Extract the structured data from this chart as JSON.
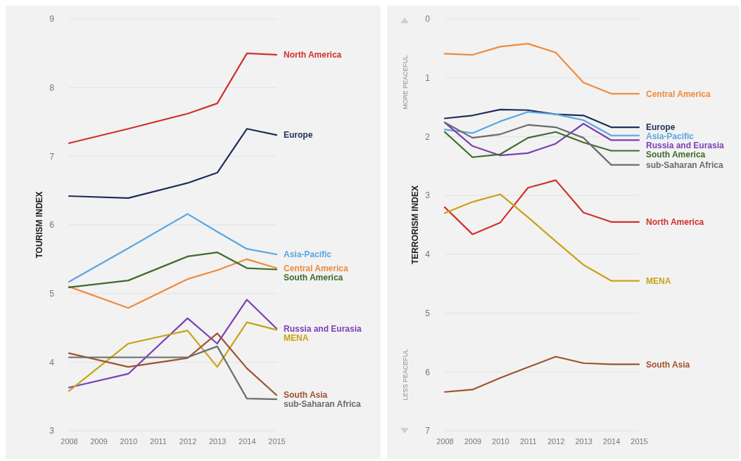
{
  "chart_data": [
    {
      "type": "line",
      "ylabel": "TOURISM INDEX",
      "x": [
        2008,
        2010,
        2012,
        2013,
        2014,
        2015
      ],
      "xlim": [
        2008,
        2015
      ],
      "xticks": [
        2008,
        2009,
        2010,
        2011,
        2012,
        2013,
        2014,
        2015
      ],
      "ylim": [
        3,
        9
      ],
      "yticks": [
        3,
        4,
        5,
        6,
        7,
        8,
        9
      ],
      "grid": "y",
      "legend": false,
      "series": [
        {
          "name": "North America",
          "color": "#d0312d",
          "values": [
            7.19,
            7.4,
            7.62,
            7.77,
            8.5,
            8.48
          ]
        },
        {
          "name": "Europe",
          "color": "#1f2d5a",
          "values": [
            6.42,
            6.39,
            6.61,
            6.76,
            7.4,
            7.31
          ]
        },
        {
          "name": "Asia-Pacific",
          "color": "#5aa7e0",
          "values": [
            5.17,
            5.66,
            6.16,
            5.9,
            5.65,
            5.57
          ]
        },
        {
          "name": "Central America",
          "color": "#f08a3c",
          "values": [
            5.1,
            4.79,
            5.21,
            5.34,
            5.5,
            5.37
          ]
        },
        {
          "name": "South America",
          "color": "#3e6b2a",
          "values": [
            5.09,
            5.19,
            5.54,
            5.6,
            5.37,
            5.35
          ]
        },
        {
          "name": "Russia and Eurasia",
          "color": "#7a3fb5",
          "values": [
            3.63,
            3.83,
            4.64,
            4.27,
            4.91,
            4.49
          ]
        },
        {
          "name": "MENA",
          "color": "#c9a216",
          "values": [
            3.58,
            4.27,
            4.46,
            3.93,
            4.58,
            4.47
          ]
        },
        {
          "name": "South Asia",
          "color": "#a0522d",
          "values": [
            4.13,
            3.93,
            4.06,
            4.42,
            3.91,
            3.52
          ]
        },
        {
          "name": "sub-Saharan Africa",
          "color": "#6b6b6b",
          "values": [
            4.07,
            4.07,
            4.07,
            4.23,
            3.47,
            3.46
          ]
        }
      ]
    },
    {
      "type": "line",
      "ylabel": "TERRORISM INDEX",
      "annotations": [
        "MORE PEACEFUL",
        "LESS PEACEFUL"
      ],
      "x": [
        2008,
        2009,
        2010,
        2011,
        2012,
        2013,
        2014,
        2015
      ],
      "xlim": [
        2008,
        2015
      ],
      "xticks": [
        2008,
        2009,
        2010,
        2011,
        2012,
        2013,
        2014,
        2015
      ],
      "ylim": [
        7,
        0
      ],
      "yticks": [
        0,
        1,
        2,
        3,
        4,
        5,
        6,
        7
      ],
      "grid": "y",
      "legend": false,
      "series": [
        {
          "name": "Central America",
          "color": "#f08a3c",
          "values": [
            0.59,
            0.61,
            0.47,
            0.42,
            0.57,
            1.08,
            1.27,
            1.27
          ]
        },
        {
          "name": "Europe",
          "color": "#1f2d5a",
          "values": [
            1.69,
            1.64,
            1.54,
            1.55,
            1.62,
            1.64,
            1.84,
            1.84
          ]
        },
        {
          "name": "Asia-Pacific",
          "color": "#5aa7e0",
          "values": [
            1.88,
            1.94,
            1.74,
            1.58,
            1.62,
            1.72,
            1.98,
            1.98
          ]
        },
        {
          "name": "Russia and Eurasia",
          "color": "#7a3fb5",
          "values": [
            1.76,
            2.16,
            2.32,
            2.28,
            2.12,
            1.78,
            2.06,
            2.06
          ]
        },
        {
          "name": "South America",
          "color": "#3e6b2a",
          "values": [
            1.92,
            2.35,
            2.3,
            2.02,
            1.92,
            2.1,
            2.24,
            2.24
          ]
        },
        {
          "name": "sub-Saharan Africa",
          "color": "#6b6b6b",
          "values": [
            1.76,
            2.02,
            1.96,
            1.8,
            1.84,
            2.02,
            2.48,
            2.48
          ]
        },
        {
          "name": "North America",
          "color": "#d0312d",
          "values": [
            3.2,
            3.66,
            3.46,
            2.87,
            2.74,
            3.29,
            3.45,
            3.45
          ]
        },
        {
          "name": "MENA",
          "color": "#c9a216",
          "values": [
            3.3,
            3.11,
            2.98,
            3.37,
            3.78,
            4.18,
            4.45,
            4.45
          ]
        },
        {
          "name": "South Asia",
          "color": "#a0522d",
          "values": [
            6.34,
            6.3,
            6.1,
            5.92,
            5.74,
            5.85,
            5.87,
            5.87
          ]
        }
      ]
    }
  ]
}
